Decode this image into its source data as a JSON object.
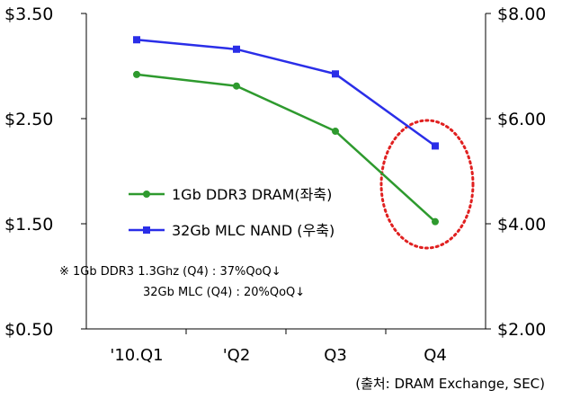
{
  "chart_data": {
    "type": "line",
    "categories": [
      "'10.Q1",
      "'Q2",
      "Q3",
      "Q4"
    ],
    "series": [
      {
        "name": "1Gb DDR3 DRAM(좌축)",
        "axis": "left",
        "color": "#2e9a2e",
        "marker": "circle",
        "values": [
          2.92,
          2.81,
          2.38,
          1.52
        ]
      },
      {
        "name": "32Gb MLC NAND (우축)",
        "axis": "right",
        "color": "#2a2ee8",
        "marker": "square",
        "values": [
          7.5,
          7.32,
          6.85,
          5.48
        ]
      }
    ],
    "y_left": {
      "min": 0.5,
      "max": 3.5,
      "ticks": [
        "$3.50",
        "$2.50",
        "$1.50",
        "$0.50"
      ],
      "tick_values": [
        3.5,
        2.5,
        1.5,
        0.5
      ]
    },
    "y_right": {
      "min": 2.0,
      "max": 8.0,
      "ticks": [
        "$8.00",
        "$6.00",
        "$4.00",
        "$2.00"
      ],
      "tick_values": [
        8.0,
        6.0,
        4.0,
        2.0
      ]
    },
    "grid": false,
    "legend_position": "center-left",
    "annotation_lines": [
      "※ 1Gb DDR3 1.3Ghz (Q4) : 37%QoQ↓",
      "32Gb MLC (Q4) : 20%QoQ↓"
    ],
    "source": "(출처: DRAM Exchange, SEC)",
    "highlight": "Q4 red dotted ellipse"
  }
}
